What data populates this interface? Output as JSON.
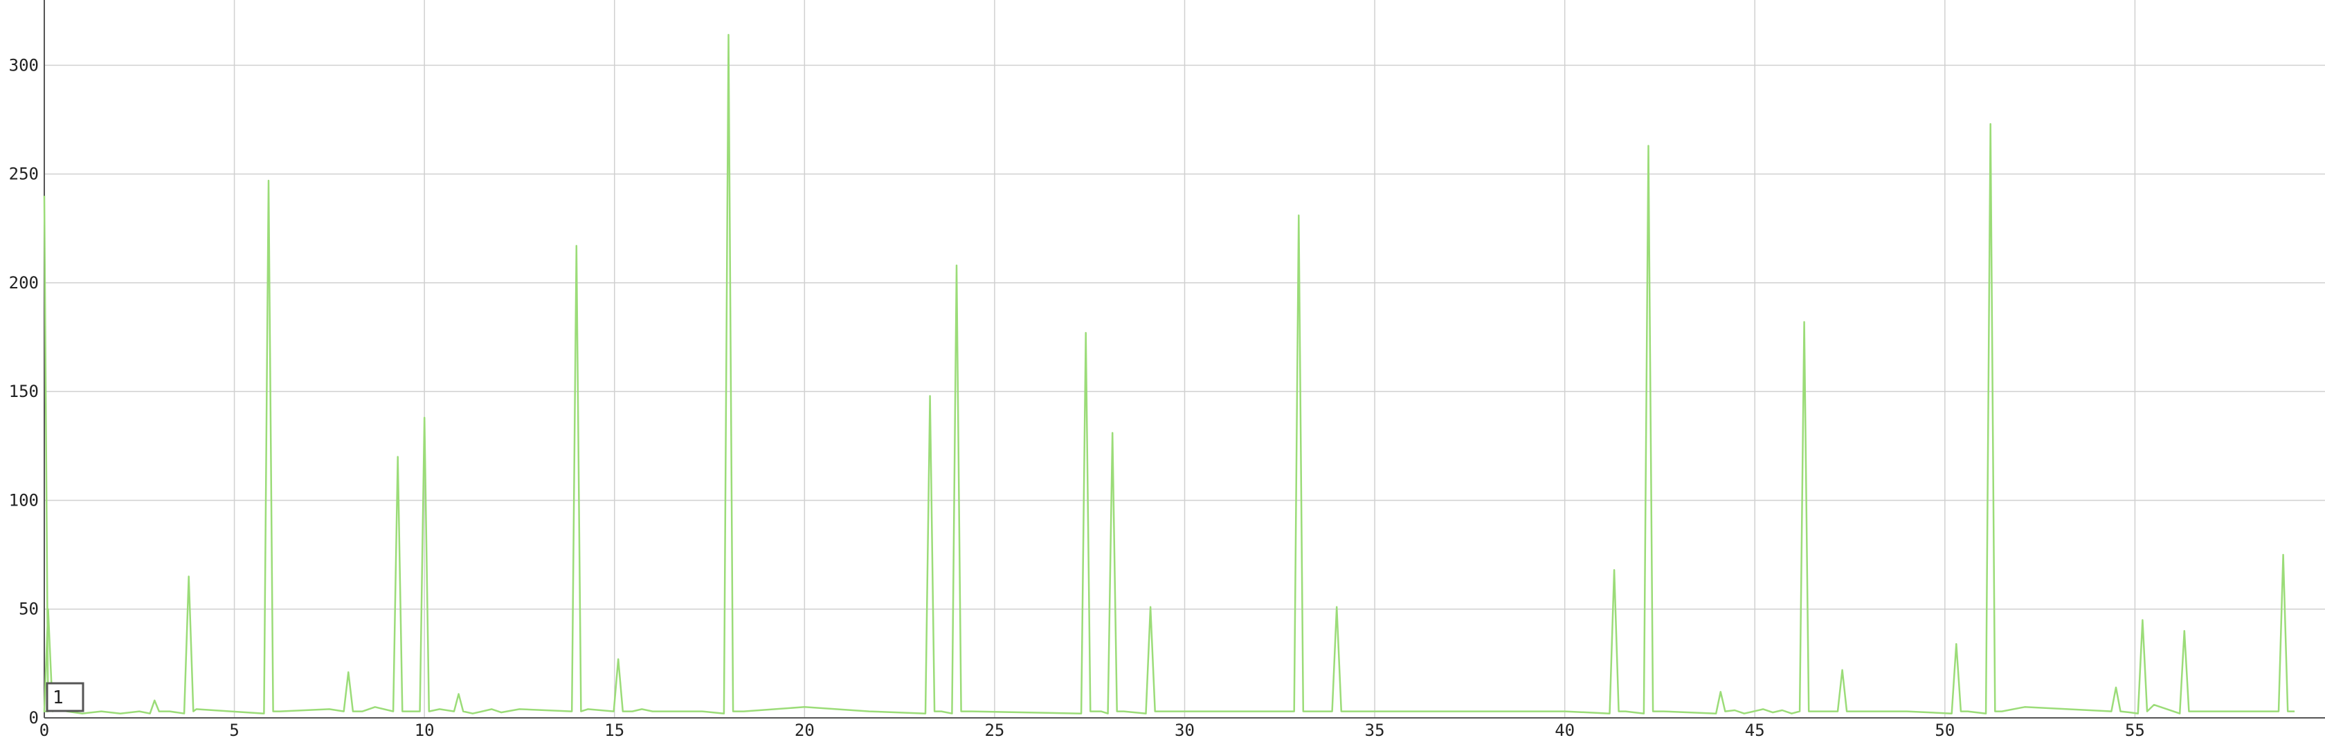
{
  "chart_data": {
    "type": "line",
    "title": "",
    "xlabel": "",
    "ylabel": "",
    "xlim": [
      0,
      60
    ],
    "ylim": [
      0,
      330
    ],
    "grid": true,
    "colors": {
      "line": "#9bdc78",
      "grid": "#d0d0d0",
      "axis": "#555555"
    },
    "x_ticks": [
      0,
      5,
      10,
      15,
      20,
      25,
      30,
      35,
      40,
      45,
      50,
      55
    ],
    "x_tick_labels": [
      "0",
      "5",
      "10",
      "15",
      "20",
      "25",
      "30",
      "35",
      "40",
      "45",
      "50",
      "55"
    ],
    "y_ticks": [
      0,
      50,
      100,
      150,
      200,
      250,
      300
    ],
    "y_tick_labels": [
      "0",
      "50",
      "100",
      "150",
      "200",
      "250",
      "300"
    ],
    "legend": {
      "position": "bottom-left",
      "label": "1"
    },
    "series": [
      {
        "baseline": 2,
        "x": [
          0.0,
          0.1,
          0.3,
          0.6,
          1.0,
          1.5,
          2.0,
          2.5,
          2.9,
          3.3,
          3.8,
          4.0,
          5.9,
          6.2,
          7.5,
          8.0,
          8.7,
          9.3,
          9.5,
          10.0,
          10.4,
          10.9,
          12.5,
          14.0,
          14.3,
          15.1,
          16.0,
          17.3,
          18.0,
          18.4,
          20.0,
          21.7,
          23.3,
          23.6,
          24.0,
          24.4,
          27.4,
          27.8,
          28.1,
          28.4,
          29.1,
          29.4,
          31.7,
          33.0,
          33.3,
          34.0,
          34.3,
          40.0,
          41.3,
          41.6,
          42.2,
          42.6,
          44.1,
          46.3,
          46.6,
          47.3,
          48.0,
          49.0,
          50.3,
          50.6,
          51.2,
          51.5,
          52.1,
          54.5,
          55.2,
          55.5,
          56.3,
          56.6,
          58.2,
          58.9,
          59.2
        ],
        "y": [
          240,
          50,
          4,
          3,
          2,
          3,
          2,
          3,
          8,
          3,
          65,
          4,
          247,
          3,
          4,
          21,
          5,
          120,
          3,
          138,
          4,
          11,
          4,
          217,
          4,
          27,
          3,
          3,
          314,
          3,
          5,
          3,
          148,
          3,
          208,
          3,
          177,
          3,
          131,
          3,
          51,
          3,
          3,
          231,
          3,
          51,
          3,
          3,
          68,
          3,
          263,
          3,
          12,
          182,
          3,
          22,
          3,
          3,
          34,
          3,
          273,
          3,
          5,
          14,
          45,
          6,
          40,
          3,
          3,
          75,
          3
        ]
      }
    ]
  }
}
